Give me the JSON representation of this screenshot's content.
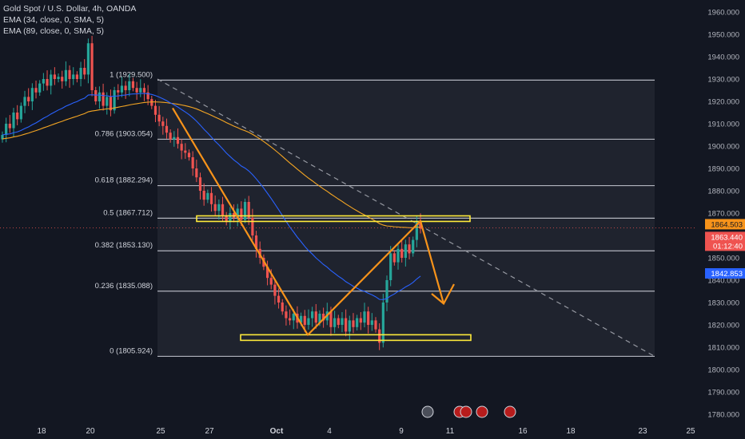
{
  "legend": {
    "title": "Gold Spot / U.S. Dollar, 4h, OANDA",
    "ema1": "EMA (34, close, 0, SMA, 5)",
    "ema2": "EMA (89, close, 0, SMA, 5)"
  },
  "colors": {
    "background": "#131722",
    "up": "#26a69a",
    "down": "#ef5350",
    "ema34": "#2962ff",
    "ema89": "#f5a623",
    "drawing": "#f7931a",
    "zone": "#ffeb3b",
    "fib_line": "#b2b5be",
    "dashed": "#9598a1",
    "price_label": "#f7931a",
    "last_label": "#ef5350",
    "ema_label": "#2962ff"
  },
  "chart_data": {
    "type": "candlestick",
    "instrument": "Gold Spot / U.S. Dollar",
    "timeframe": "4h",
    "source": "OANDA",
    "y_axis": {
      "ticks": [
        "1960.000",
        "1950.000",
        "1940.000",
        "1930.000",
        "1920.000",
        "1910.000",
        "1900.000",
        "1890.000",
        "1880.000",
        "1870.000",
        "1860.000",
        "1850.000",
        "1840.000",
        "1830.000",
        "1820.000",
        "1810.000",
        "1800.000",
        "1790.000",
        "1780.000"
      ],
      "range": [
        1776.5,
        1963.2
      ]
    },
    "x_axis": {
      "ticks": [
        "18",
        "20",
        "25",
        "27",
        "Oct",
        "4",
        "9",
        "11",
        "16",
        "18",
        "23",
        "25"
      ]
    },
    "fibonacci": [
      {
        "label": "1 (1929.500)",
        "value": 1929.5
      },
      {
        "label": "0.786 (1903.054)",
        "value": 1903.054
      },
      {
        "label": "0.618 (1882.294)",
        "value": 1882.294
      },
      {
        "label": "0.5 (1867.712)",
        "value": 1867.712
      },
      {
        "label": "0.382 (1853.130)",
        "value": 1853.13
      },
      {
        "label": "0.236 (1835.088)",
        "value": 1835.088
      },
      {
        "label": "0 (1805.924)",
        "value": 1805.924
      }
    ],
    "price_labels": {
      "current": "1864.503",
      "last": "1863.440",
      "countdown": "01:12:40",
      "ema": "1842.853"
    },
    "series": [
      {
        "name": "Gold Spot",
        "closes": [
          1905,
          1910,
          1908,
          1915,
          1912,
          1918,
          1922,
          1920,
          1926,
          1924,
          1928,
          1930,
          1927,
          1932,
          1930,
          1931,
          1929,
          1934,
          1930,
          1932,
          1930,
          1935,
          1932,
          1946,
          1925,
          1920,
          1924,
          1918,
          1922,
          1916,
          1925,
          1924,
          1927,
          1925,
          1929,
          1926,
          1924,
          1926,
          1924,
          1921,
          1918,
          1914,
          1911,
          1909,
          1906,
          1903,
          1904,
          1901,
          1898,
          1897,
          1895,
          1890,
          1886,
          1880,
          1876,
          1879,
          1874,
          1871,
          1874,
          1869,
          1866,
          1870,
          1868,
          1872,
          1867,
          1875,
          1868,
          1860,
          1854,
          1850,
          1846,
          1841,
          1838,
          1833,
          1830,
          1826,
          1823,
          1822,
          1825,
          1821,
          1824,
          1820,
          1823,
          1826,
          1821,
          1825,
          1822,
          1826,
          1819,
          1823,
          1820,
          1823,
          1817,
          1822,
          1819,
          1823,
          1821,
          1826,
          1820,
          1822,
          1818,
          1812,
          1830,
          1840,
          1852,
          1848,
          1854,
          1850,
          1856,
          1852,
          1858,
          1866,
          1863
        ]
      }
    ]
  }
}
